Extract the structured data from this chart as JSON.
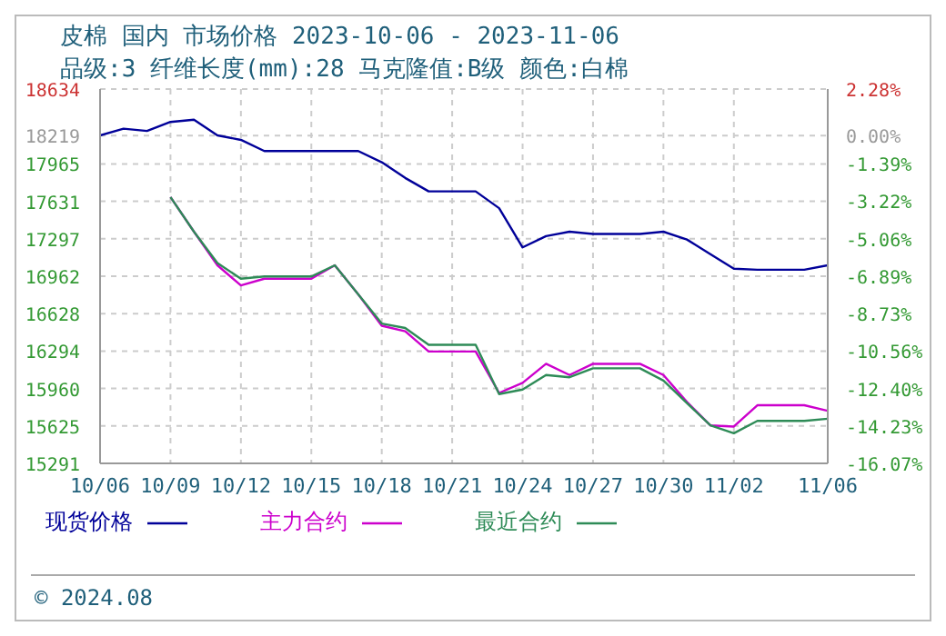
{
  "chart_data": {
    "type": "line",
    "title": "皮棉 国内 市场价格 2023-10-06 - 2023-11-06",
    "subtitle": "品级:3 纤维长度(mm):28 马克隆值:B级 颜色:白棉",
    "x": [
      "2023-10-06",
      "2023-10-07",
      "2023-10-08",
      "2023-10-09",
      "2023-10-10",
      "2023-10-11",
      "2023-10-12",
      "2023-10-13",
      "2023-10-14",
      "2023-10-15",
      "2023-10-16",
      "2023-10-17",
      "2023-10-18",
      "2023-10-19",
      "2023-10-20",
      "2023-10-21",
      "2023-10-22",
      "2023-10-23",
      "2023-10-24",
      "2023-10-25",
      "2023-10-26",
      "2023-10-27",
      "2023-10-28",
      "2023-10-29",
      "2023-10-30",
      "2023-10-31",
      "2023-11-01",
      "2023-11-02",
      "2023-11-03",
      "2023-11-04",
      "2023-11-05",
      "2023-11-06"
    ],
    "series": [
      {
        "name": "现货价格",
        "color": "#000099",
        "values": [
          18220,
          18280,
          18260,
          18340,
          18360,
          18220,
          18180,
          18080,
          18080,
          18080,
          18080,
          18080,
          17980,
          17840,
          17720,
          17720,
          17720,
          17570,
          17220,
          17320,
          17360,
          17340,
          17340,
          17340,
          17360,
          17290,
          17160,
          17030,
          17020,
          17020,
          17020,
          17060
        ]
      },
      {
        "name": "主力合约",
        "color": "#cc00cc",
        "values": [
          null,
          null,
          null,
          17670,
          17360,
          17060,
          16880,
          16940,
          16940,
          16940,
          17060,
          16800,
          16520,
          16470,
          16290,
          16290,
          16290,
          15920,
          16010,
          16180,
          16080,
          16180,
          16180,
          16180,
          16080,
          15840,
          15630,
          15620,
          15810,
          15810,
          15810,
          15760
        ]
      },
      {
        "name": "最近合约",
        "color": "#2e8b57",
        "values": [
          null,
          null,
          null,
          17670,
          17360,
          17080,
          16940,
          16960,
          16960,
          16960,
          17060,
          16800,
          16540,
          16500,
          16350,
          16350,
          16350,
          15910,
          15950,
          16080,
          16060,
          16140,
          16140,
          16140,
          16030,
          15830,
          15630,
          15560,
          15670,
          15670,
          15670,
          15690
        ]
      }
    ],
    "xlim": [
      "2023-10-06",
      "2023-11-06"
    ],
    "xticks": [
      {
        "value": "2023-10-06",
        "label": "10/06"
      },
      {
        "value": "2023-10-09",
        "label": "10/09"
      },
      {
        "value": "2023-10-12",
        "label": "10/12"
      },
      {
        "value": "2023-10-15",
        "label": "10/15"
      },
      {
        "value": "2023-10-18",
        "label": "10/18"
      },
      {
        "value": "2023-10-21",
        "label": "10/21"
      },
      {
        "value": "2023-10-24",
        "label": "10/24"
      },
      {
        "value": "2023-10-27",
        "label": "10/27"
      },
      {
        "value": "2023-10-30",
        "label": "10/30"
      },
      {
        "value": "2023-11-02",
        "label": "11/02"
      },
      {
        "value": "2023-11-06",
        "label": "11/06"
      }
    ],
    "ylim": [
      15291,
      18634
    ],
    "yticks": [
      15291,
      15625,
      15960,
      16294,
      16628,
      16962,
      17297,
      17631,
      17965,
      18219,
      18634
    ],
    "y2lim": [
      -16.07,
      2.28
    ],
    "y2ticks": [
      {
        "value": -16.07,
        "label": "-16.07%"
      },
      {
        "value": -14.23,
        "label": "-14.23%"
      },
      {
        "value": -12.4,
        "label": "-12.40%"
      },
      {
        "value": -10.56,
        "label": "-10.56%"
      },
      {
        "value": -8.73,
        "label": "-8.73%"
      },
      {
        "value": -6.89,
        "label": "-6.89%"
      },
      {
        "value": -5.06,
        "label": "-5.06%"
      },
      {
        "value": -3.22,
        "label": "-3.22%"
      },
      {
        "value": -1.39,
        "label": "-1.39%"
      },
      {
        "value": 0,
        "label": "0.00%"
      },
      {
        "value": 2.28,
        "label": "2.28%"
      }
    ],
    "grid": true,
    "legend": "bottom",
    "marker": "none",
    "line_style": "solid",
    "annotations": [
      "© 2024.08"
    ]
  }
}
